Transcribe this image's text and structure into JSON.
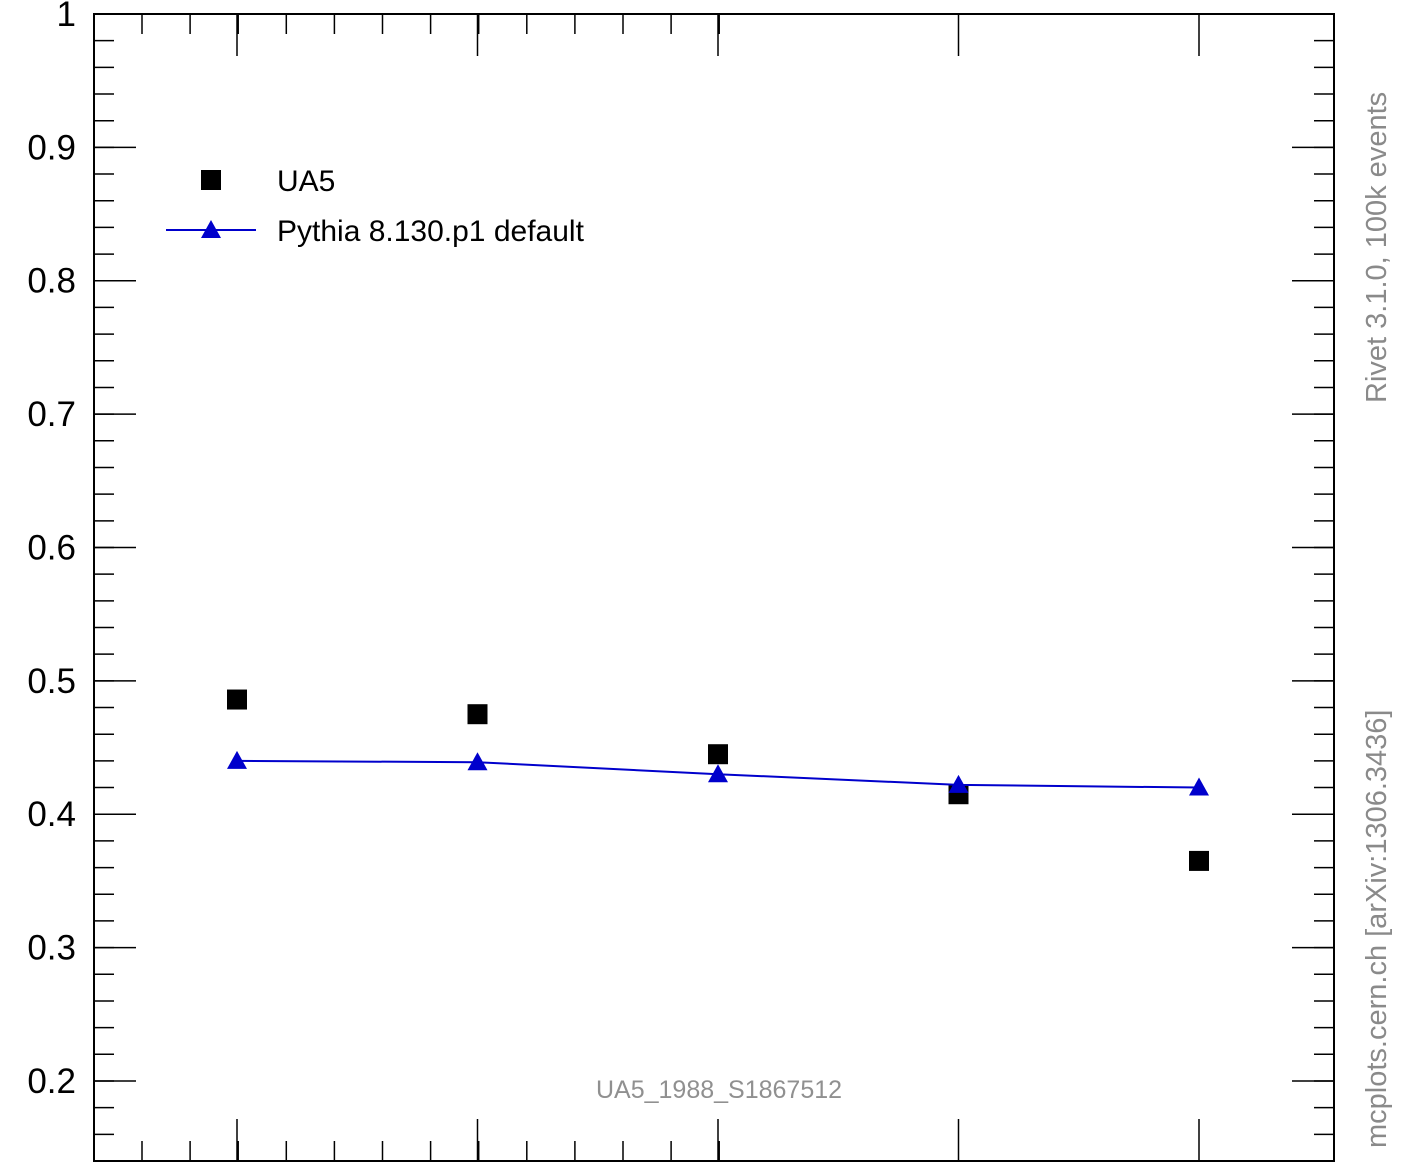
{
  "chart_data": {
    "type": "scatter",
    "title_partial": "",
    "xlabel": "",
    "ylabel": "",
    "ylim": [
      0.14,
      1.0
    ],
    "y_ticks": [
      {
        "value": 0.2,
        "label": "0.2"
      },
      {
        "value": 0.3,
        "label": "0.3"
      },
      {
        "value": 0.4,
        "label": "0.4"
      },
      {
        "value": 0.5,
        "label": "0.5"
      },
      {
        "value": 0.6,
        "label": "0.6"
      },
      {
        "value": 0.7,
        "label": "0.7"
      },
      {
        "value": 0.8,
        "label": "0.8"
      },
      {
        "value": 0.9,
        "label": "0.9"
      },
      {
        "value": 1.0,
        "label": "1"
      }
    ],
    "x_points": [
      1,
      2,
      3,
      4,
      5
    ],
    "series": [
      {
        "name": "UA5",
        "marker": "square",
        "line": false,
        "color": "#000000",
        "values": [
          0.486,
          0.475,
          0.445,
          0.415,
          0.365
        ]
      },
      {
        "name": "Pythia 8.130.p1 default",
        "marker": "triangle",
        "line": true,
        "color": "#0000cc",
        "values": [
          0.44,
          0.439,
          0.43,
          0.422,
          0.42
        ]
      }
    ],
    "legend_position": "top-left",
    "grid": false
  },
  "annotations": {
    "analysis_id": "UA5_1988_S1867512",
    "side_top": "Rivet 3.1.0,  100k events",
    "side_bottom": "mcplots.cern.ch [arXiv:1306.3436]"
  }
}
